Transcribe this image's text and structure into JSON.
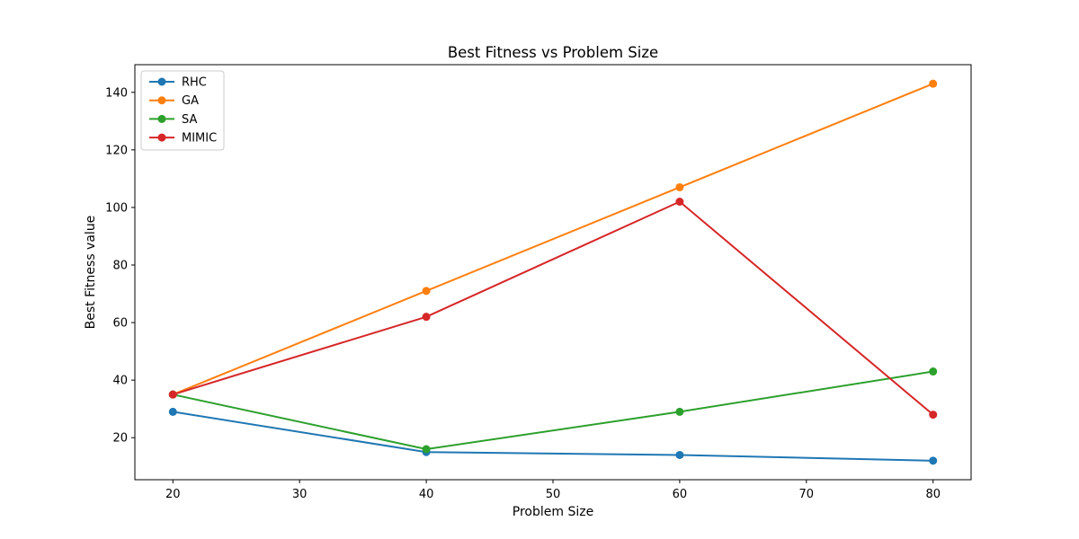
{
  "chart_data": {
    "type": "line",
    "title": "Best Fitness vs Problem Size",
    "xlabel": "Problem Size",
    "ylabel": "Best Fitness value",
    "x": [
      20,
      40,
      60,
      80
    ],
    "xlim": [
      17,
      83
    ],
    "ylim": [
      5.4,
      149.6
    ],
    "xticks": [
      20,
      30,
      40,
      50,
      60,
      70,
      80
    ],
    "yticks": [
      20,
      40,
      60,
      80,
      100,
      120,
      140
    ],
    "grid": false,
    "legend_position": "top-left",
    "series": [
      {
        "name": "RHC",
        "color": "#1f77b4",
        "values": [
          29,
          15,
          14,
          12
        ]
      },
      {
        "name": "GA",
        "color": "#ff7f0e",
        "values": [
          35,
          71,
          107,
          143
        ]
      },
      {
        "name": "SA",
        "color": "#2ca02c",
        "values": [
          35,
          16,
          29,
          43
        ]
      },
      {
        "name": "MIMIC",
        "color": "#d62728",
        "values": [
          35,
          62,
          102,
          28
        ]
      }
    ]
  }
}
